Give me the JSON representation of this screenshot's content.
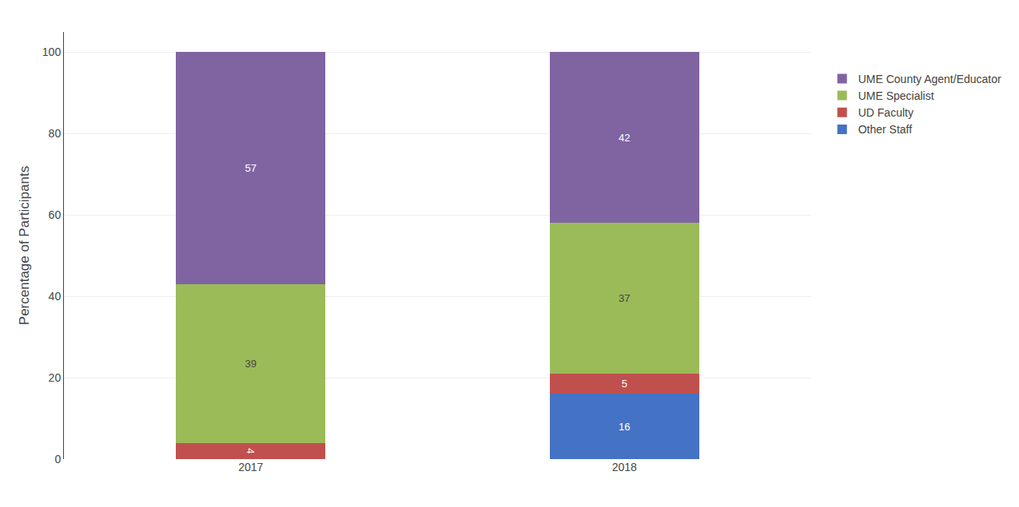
{
  "chart_data": {
    "type": "bar",
    "stacked": true,
    "categories": [
      "2017",
      "2018"
    ],
    "series": [
      {
        "name": "Other Staff",
        "color": "#4472C4",
        "values": [
          0,
          16
        ]
      },
      {
        "name": "UD Faculty",
        "color": "#C0504D",
        "values": [
          4,
          5
        ]
      },
      {
        "name": "UME Specialist",
        "color": "#9BBB59",
        "values": [
          39,
          37
        ]
      },
      {
        "name": "UME County Agent/Educator",
        "color": "#8064A2",
        "values": [
          57,
          42
        ]
      }
    ],
    "ylabel": "Percentage of Participants",
    "ylim": [
      0,
      105
    ],
    "yticks": [
      0,
      20,
      40,
      60,
      80,
      100
    ],
    "grid": true,
    "data_labels": true,
    "legend": "upper right"
  }
}
